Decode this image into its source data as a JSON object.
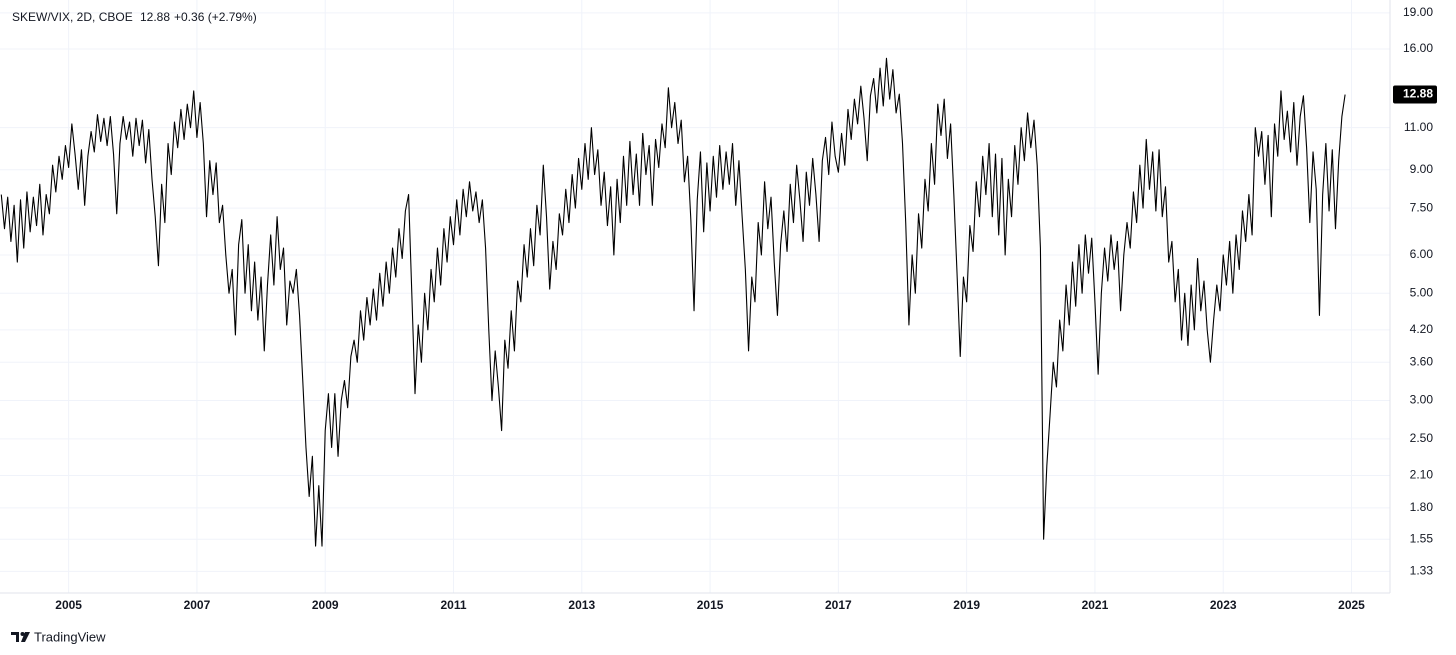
{
  "chart_data": {
    "type": "line",
    "symbol": "SKEW/VIX, 2D, CBOE",
    "last": "12.88",
    "change": "+0.36 (+2.79%)",
    "brand": "TradingView",
    "log_scale": true,
    "grid": true,
    "xlim": [
      2003.93,
      2025.6
    ],
    "xticks": [
      2005,
      2007,
      2009,
      2011,
      2013,
      2015,
      2017,
      2019,
      2021,
      2023,
      2025
    ],
    "ylim": [
      1.2,
      20.2
    ],
    "yticks": [
      {
        "value": 1.33,
        "label": "1.33"
      },
      {
        "value": 1.55,
        "label": "1.55"
      },
      {
        "value": 1.8,
        "label": "1.80"
      },
      {
        "value": 2.1,
        "label": "2.10"
      },
      {
        "value": 2.5,
        "label": "2.50"
      },
      {
        "value": 3,
        "label": "3.00"
      },
      {
        "value": 3.6,
        "label": "3.60"
      },
      {
        "value": 4.2,
        "label": "4.20"
      },
      {
        "value": 5,
        "label": "5.00"
      },
      {
        "value": 6,
        "label": "6.00"
      },
      {
        "value": 7.5,
        "label": "7.50"
      },
      {
        "value": 9,
        "label": "9.00"
      },
      {
        "value": 11,
        "label": "11.00"
      },
      {
        "value": 16,
        "label": "16.00"
      },
      {
        "value": 19,
        "label": "19.00"
      }
    ],
    "series": [
      {
        "name": "SKEW/VIX",
        "color": "#000000",
        "x": [
          2003.95,
          2004.0,
          2004.05,
          2004.1,
          2004.15,
          2004.2,
          2004.25,
          2004.3,
          2004.35,
          2004.4,
          2004.45,
          2004.5,
          2004.55,
          2004.6,
          2004.65,
          2004.7,
          2004.75,
          2004.8,
          2004.85,
          2004.9,
          2004.95,
          2005.0,
          2005.05,
          2005.1,
          2005.15,
          2005.2,
          2005.25,
          2005.3,
          2005.35,
          2005.4,
          2005.45,
          2005.5,
          2005.55,
          2005.6,
          2005.65,
          2005.7,
          2005.75,
          2005.8,
          2005.85,
          2005.9,
          2005.95,
          2006.0,
          2006.05,
          2006.1,
          2006.15,
          2006.2,
          2006.25,
          2006.3,
          2006.35,
          2006.4,
          2006.45,
          2006.5,
          2006.55,
          2006.6,
          2006.65,
          2006.7,
          2006.75,
          2006.8,
          2006.85,
          2006.9,
          2006.95,
          2007.0,
          2007.05,
          2007.1,
          2007.15,
          2007.2,
          2007.25,
          2007.3,
          2007.35,
          2007.4,
          2007.45,
          2007.5,
          2007.55,
          2007.6,
          2007.65,
          2007.7,
          2007.75,
          2007.8,
          2007.85,
          2007.9,
          2007.95,
          2008.0,
          2008.05,
          2008.1,
          2008.15,
          2008.2,
          2008.25,
          2008.3,
          2008.35,
          2008.4,
          2008.45,
          2008.5,
          2008.55,
          2008.6,
          2008.65,
          2008.7,
          2008.75,
          2008.8,
          2008.85,
          2008.9,
          2008.95,
          2009.0,
          2009.05,
          2009.1,
          2009.15,
          2009.2,
          2009.25,
          2009.3,
          2009.35,
          2009.4,
          2009.45,
          2009.5,
          2009.55,
          2009.6,
          2009.65,
          2009.7,
          2009.75,
          2009.8,
          2009.85,
          2009.9,
          2009.95,
          2010.0,
          2010.05,
          2010.1,
          2010.15,
          2010.2,
          2010.25,
          2010.3,
          2010.35,
          2010.4,
          2010.45,
          2010.5,
          2010.55,
          2010.6,
          2010.65,
          2010.7,
          2010.75,
          2010.8,
          2010.85,
          2010.9,
          2010.95,
          2011.0,
          2011.05,
          2011.1,
          2011.15,
          2011.2,
          2011.25,
          2011.3,
          2011.35,
          2011.4,
          2011.45,
          2011.5,
          2011.55,
          2011.6,
          2011.65,
          2011.7,
          2011.75,
          2011.8,
          2011.85,
          2011.9,
          2011.95,
          2012.0,
          2012.05,
          2012.1,
          2012.15,
          2012.2,
          2012.25,
          2012.3,
          2012.35,
          2012.4,
          2012.45,
          2012.5,
          2012.55,
          2012.6,
          2012.65,
          2012.7,
          2012.75,
          2012.8,
          2012.85,
          2012.9,
          2012.95,
          2013.0,
          2013.05,
          2013.1,
          2013.15,
          2013.2,
          2013.25,
          2013.3,
          2013.35,
          2013.4,
          2013.45,
          2013.5,
          2013.55,
          2013.6,
          2013.65,
          2013.7,
          2013.75,
          2013.8,
          2013.85,
          2013.9,
          2013.95,
          2014.0,
          2014.05,
          2014.1,
          2014.15,
          2014.2,
          2014.25,
          2014.3,
          2014.35,
          2014.4,
          2014.45,
          2014.5,
          2014.55,
          2014.6,
          2014.65,
          2014.7,
          2014.75,
          2014.8,
          2014.85,
          2014.9,
          2014.95,
          2015.0,
          2015.05,
          2015.1,
          2015.15,
          2015.2,
          2015.25,
          2015.3,
          2015.35,
          2015.4,
          2015.45,
          2015.5,
          2015.55,
          2015.6,
          2015.65,
          2015.7,
          2015.75,
          2015.8,
          2015.85,
          2015.9,
          2015.95,
          2016.0,
          2016.05,
          2016.1,
          2016.15,
          2016.2,
          2016.25,
          2016.3,
          2016.35,
          2016.4,
          2016.45,
          2016.5,
          2016.55,
          2016.6,
          2016.65,
          2016.7,
          2016.75,
          2016.8,
          2016.85,
          2016.9,
          2016.95,
          2017.0,
          2017.05,
          2017.1,
          2017.15,
          2017.2,
          2017.25,
          2017.3,
          2017.35,
          2017.4,
          2017.45,
          2017.5,
          2017.55,
          2017.6,
          2017.65,
          2017.7,
          2017.75,
          2017.8,
          2017.85,
          2017.9,
          2017.95,
          2018.0,
          2018.05,
          2018.1,
          2018.15,
          2018.2,
          2018.25,
          2018.3,
          2018.35,
          2018.4,
          2018.45,
          2018.5,
          2018.55,
          2018.6,
          2018.65,
          2018.7,
          2018.75,
          2018.8,
          2018.85,
          2018.9,
          2018.95,
          2019.0,
          2019.05,
          2019.1,
          2019.15,
          2019.2,
          2019.25,
          2019.3,
          2019.35,
          2019.4,
          2019.45,
          2019.5,
          2019.55,
          2019.6,
          2019.65,
          2019.7,
          2019.75,
          2019.8,
          2019.85,
          2019.9,
          2019.95,
          2020.0,
          2020.05,
          2020.1,
          2020.15,
          2020.2,
          2020.25,
          2020.3,
          2020.35,
          2020.4,
          2020.45,
          2020.5,
          2020.55,
          2020.6,
          2020.65,
          2020.7,
          2020.75,
          2020.8,
          2020.85,
          2020.9,
          2020.95,
          2021.0,
          2021.05,
          2021.1,
          2021.15,
          2021.2,
          2021.25,
          2021.3,
          2021.35,
          2021.4,
          2021.45,
          2021.5,
          2021.55,
          2021.6,
          2021.65,
          2021.7,
          2021.75,
          2021.8,
          2021.85,
          2021.9,
          2021.95,
          2022.0,
          2022.05,
          2022.1,
          2022.15,
          2022.2,
          2022.25,
          2022.3,
          2022.35,
          2022.4,
          2022.45,
          2022.5,
          2022.55,
          2022.6,
          2022.65,
          2022.7,
          2022.75,
          2022.8,
          2022.85,
          2022.9,
          2022.95,
          2023.0,
          2023.05,
          2023.1,
          2023.15,
          2023.2,
          2023.25,
          2023.3,
          2023.35,
          2023.4,
          2023.45,
          2023.5,
          2023.55,
          2023.6,
          2023.65,
          2023.7,
          2023.75,
          2023.8,
          2023.85,
          2023.9,
          2023.95,
          2024.0,
          2024.05,
          2024.1,
          2024.15,
          2024.2,
          2024.25,
          2024.3,
          2024.35,
          2024.4,
          2024.45,
          2024.5,
          2024.55,
          2024.6,
          2024.65,
          2024.7,
          2024.75,
          2024.8,
          2024.85,
          2024.9
        ],
        "values": [
          8.0,
          6.8,
          7.9,
          6.4,
          7.6,
          5.8,
          7.8,
          6.2,
          8.1,
          6.7,
          7.9,
          6.9,
          8.4,
          6.6,
          8.0,
          7.3,
          9.2,
          8.1,
          9.6,
          8.6,
          10.1,
          9.1,
          11.2,
          9.7,
          8.2,
          9.9,
          7.6,
          9.6,
          10.8,
          9.8,
          11.7,
          10.3,
          11.5,
          10.1,
          11.6,
          9.7,
          7.3,
          10.2,
          11.6,
          10.4,
          11.3,
          9.6,
          11.5,
          10.1,
          11.4,
          9.3,
          10.9,
          8.6,
          7.2,
          5.7,
          8.4,
          7.0,
          10.2,
          8.8,
          11.3,
          10.0,
          12.0,
          10.4,
          12.3,
          11.0,
          13.1,
          10.5,
          12.4,
          10.2,
          7.2,
          9.4,
          8.0,
          9.3,
          7.0,
          7.6,
          6.0,
          5.0,
          5.6,
          4.1,
          6.3,
          7.1,
          5.0,
          6.3,
          4.6,
          5.8,
          4.4,
          5.4,
          3.8,
          5.2,
          6.6,
          5.2,
          7.2,
          5.6,
          6.2,
          4.3,
          5.3,
          5.0,
          5.6,
          4.5,
          3.3,
          2.4,
          1.9,
          2.3,
          1.5,
          2.0,
          1.5,
          2.6,
          3.1,
          2.4,
          3.1,
          2.3,
          3.0,
          3.3,
          2.9,
          3.7,
          4.0,
          3.6,
          4.6,
          4.0,
          4.9,
          4.3,
          5.1,
          4.4,
          5.5,
          4.7,
          5.8,
          5.0,
          6.2,
          5.4,
          6.8,
          5.9,
          7.4,
          8.0,
          5.0,
          3.1,
          4.3,
          3.6,
          5.0,
          4.2,
          5.6,
          4.8,
          6.2,
          5.2,
          6.8,
          5.8,
          7.2,
          6.3,
          7.8,
          6.6,
          8.2,
          7.2,
          8.5,
          7.4,
          8.1,
          7.0,
          7.8,
          6.2,
          4.2,
          3.0,
          3.8,
          3.2,
          2.6,
          4.0,
          3.5,
          4.6,
          3.8,
          5.3,
          4.8,
          6.3,
          5.4,
          6.8,
          5.7,
          7.6,
          6.6,
          9.2,
          7.2,
          5.1,
          6.4,
          5.6,
          7.3,
          6.6,
          8.2,
          7.0,
          8.8,
          7.5,
          9.5,
          8.2,
          10.2,
          8.6,
          11.0,
          8.8,
          9.9,
          7.6,
          8.9,
          6.9,
          8.3,
          6.0,
          8.6,
          7.0,
          9.6,
          7.6,
          10.3,
          8.0,
          9.7,
          7.6,
          10.7,
          8.8,
          10.1,
          7.6,
          10.4,
          9.1,
          11.2,
          10.0,
          13.3,
          11.0,
          12.4,
          10.2,
          11.4,
          8.5,
          9.6,
          7.1,
          4.6,
          7.8,
          9.8,
          6.7,
          9.3,
          7.4,
          9.6,
          7.9,
          10.1,
          8.2,
          9.8,
          8.4,
          10.2,
          7.6,
          9.4,
          7.2,
          5.6,
          3.8,
          5.4,
          4.8,
          7.0,
          6.0,
          8.5,
          6.8,
          7.9,
          5.8,
          4.5,
          6.3,
          7.4,
          6.1,
          8.4,
          7.0,
          9.2,
          7.8,
          6.4,
          8.9,
          7.6,
          9.5,
          8.0,
          6.4,
          9.4,
          10.5,
          8.8,
          11.3,
          9.6,
          8.9,
          10.7,
          9.2,
          12.0,
          10.4,
          12.6,
          11.2,
          13.4,
          11.5,
          9.4,
          12.8,
          13.9,
          11.8,
          14.6,
          12.2,
          15.3,
          12.6,
          14.5,
          11.8,
          12.9,
          10.2,
          7.0,
          4.3,
          6.0,
          5.0,
          7.3,
          6.2,
          8.6,
          7.4,
          10.2,
          8.4,
          12.3,
          10.6,
          12.6,
          9.5,
          11.2,
          8.0,
          5.5,
          3.7,
          5.4,
          4.8,
          6.9,
          6.1,
          8.5,
          7.2,
          9.6,
          8.0,
          10.2,
          7.2,
          9.7,
          6.6,
          9.5,
          6.0,
          8.6,
          7.2,
          10.1,
          8.4,
          11.0,
          9.4,
          11.8,
          10.0,
          11.4,
          9.2,
          6.2,
          1.55,
          2.2,
          2.8,
          3.6,
          3.2,
          4.4,
          3.8,
          5.2,
          4.3,
          5.8,
          4.7,
          6.3,
          5.0,
          6.6,
          5.5,
          6.5,
          4.8,
          3.4,
          5.0,
          6.2,
          5.3,
          6.6,
          5.6,
          6.4,
          4.6,
          6.0,
          7.0,
          6.2,
          8.1,
          7.0,
          9.2,
          7.5,
          10.4,
          8.2,
          9.8,
          7.4,
          9.9,
          7.2,
          8.3,
          5.8,
          6.4,
          4.8,
          5.6,
          4.0,
          5.0,
          3.9,
          5.2,
          4.2,
          5.9,
          4.6,
          5.3,
          4.2,
          3.6,
          4.4,
          5.2,
          4.6,
          6.0,
          5.2,
          6.4,
          5.0,
          6.6,
          5.6,
          7.4,
          6.4,
          8.0,
          6.6,
          11.0,
          9.6,
          10.8,
          8.4,
          10.6,
          7.2,
          11.2,
          9.6,
          13.1,
          10.4,
          11.9,
          9.8,
          12.4,
          9.2,
          11.6,
          12.8,
          10.0,
          7.0,
          9.8,
          8.2,
          4.5,
          8.0,
          10.2,
          7.4,
          9.9,
          6.8,
          9.4,
          11.6,
          12.88
        ]
      }
    ]
  }
}
